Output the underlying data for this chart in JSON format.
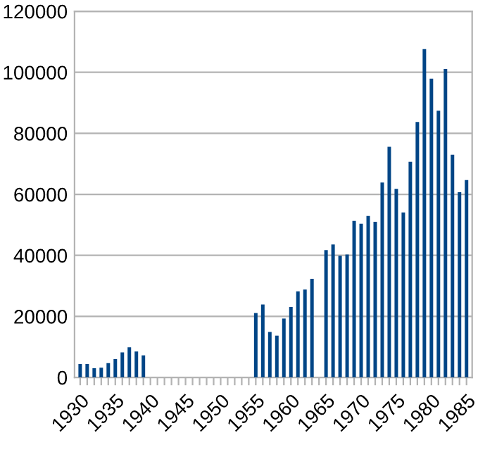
{
  "chart_data": {
    "type": "bar",
    "categories": [
      "1930",
      null,
      null,
      null,
      null,
      "1935",
      null,
      null,
      null,
      null,
      "1940",
      null,
      null,
      null,
      null,
      "1945",
      null,
      null,
      null,
      null,
      "1950",
      null,
      null,
      null,
      null,
      "1955",
      null,
      null,
      null,
      null,
      "1960",
      null,
      null,
      null,
      null,
      "1965",
      null,
      null,
      null,
      null,
      "1970",
      null,
      null,
      null,
      null,
      "1975",
      null,
      null,
      null,
      null,
      "1980",
      null,
      null,
      null,
      null,
      "1985"
    ],
    "values": [
      4400,
      4400,
      3000,
      3200,
      4700,
      6000,
      8200,
      9900,
      8500,
      7200,
      null,
      null,
      null,
      null,
      null,
      null,
      null,
      null,
      null,
      null,
      null,
      null,
      null,
      null,
      null,
      21100,
      23900,
      14900,
      13700,
      19300,
      23100,
      28200,
      28800,
      32300,
      null,
      41700,
      43600,
      39900,
      40300,
      51300,
      50400,
      52900,
      51000,
      63900,
      75600,
      61800,
      54100,
      70700,
      83700,
      107600,
      97900,
      87400,
      101100,
      73000,
      60700,
      64700
    ],
    "color": "#004586",
    "ylim": [
      0,
      120000
    ],
    "yticks": [
      0,
      20000,
      40000,
      60000,
      80000,
      100000,
      120000
    ],
    "grid": "y",
    "legend": false
  }
}
